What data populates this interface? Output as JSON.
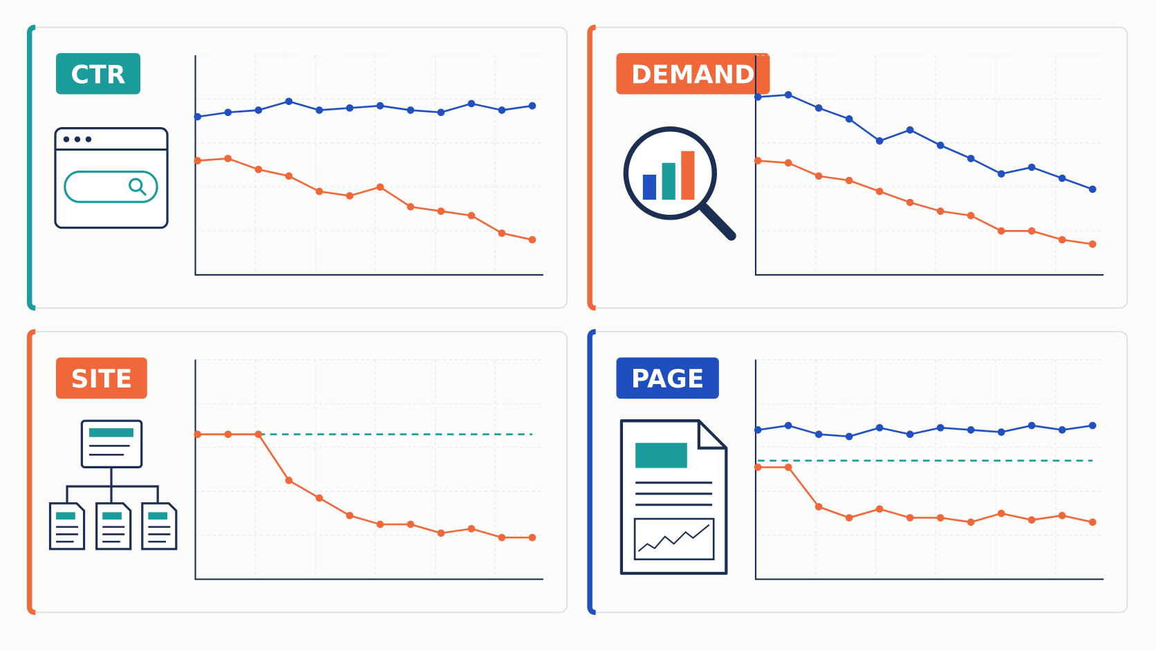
{
  "chart_data": [
    {
      "type": "line",
      "title": "CTR",
      "color": "#1a9c9c",
      "ylim": [
        0,
        100
      ],
      "grid": true,
      "series": [
        {
          "color": "#2150c0",
          "values": [
            72,
            74,
            75,
            79,
            75,
            76,
            77,
            75,
            74,
            78,
            75,
            77
          ]
        },
        {
          "color": "#f0683a",
          "values": [
            52,
            53,
            48,
            45,
            38,
            36,
            40,
            31,
            29,
            27,
            19,
            16
          ]
        }
      ]
    },
    {
      "type": "line",
      "title": "DEMAND",
      "color": "#f0683a",
      "ylim": [
        0,
        100
      ],
      "grid": true,
      "series": [
        {
          "color": "#2150c0",
          "values": [
            81,
            82,
            76,
            71,
            61,
            66,
            59,
            53,
            46,
            49,
            44,
            39
          ]
        },
        {
          "color": "#f0683a",
          "values": [
            52,
            51,
            45,
            43,
            38,
            33,
            29,
            27,
            20,
            20,
            16,
            14
          ]
        }
      ]
    },
    {
      "type": "line",
      "title": "SITE",
      "color": "#f0683a",
      "ylim": [
        0,
        100
      ],
      "grid": true,
      "series": [
        {
          "color": "#1a9c9c",
          "dashed": true,
          "markers": false,
          "values": [
            null,
            null,
            66,
            66,
            66,
            66,
            66,
            66,
            66,
            66,
            66,
            66
          ]
        },
        {
          "color": "#f0683a",
          "values": [
            66,
            66,
            66,
            45,
            37,
            29,
            25,
            25,
            21,
            23,
            19,
            19
          ]
        }
      ]
    },
    {
      "type": "line",
      "title": "PAGE",
      "color": "#1f4fbf",
      "ylim": [
        0,
        100
      ],
      "grid": true,
      "series": [
        {
          "color": "#1a9c9c",
          "dashed": true,
          "markers": false,
          "values": [
            54,
            54,
            54,
            54,
            54,
            54,
            54,
            54,
            54,
            54,
            54,
            54
          ]
        },
        {
          "color": "#2150c0",
          "values": [
            68,
            70,
            66,
            65,
            69,
            66,
            69,
            68,
            67,
            70,
            68,
            70
          ]
        },
        {
          "color": "#f0683a",
          "values": [
            51,
            51,
            33,
            28,
            32,
            28,
            28,
            26,
            30,
            27,
            29,
            26
          ]
        }
      ]
    }
  ]
}
